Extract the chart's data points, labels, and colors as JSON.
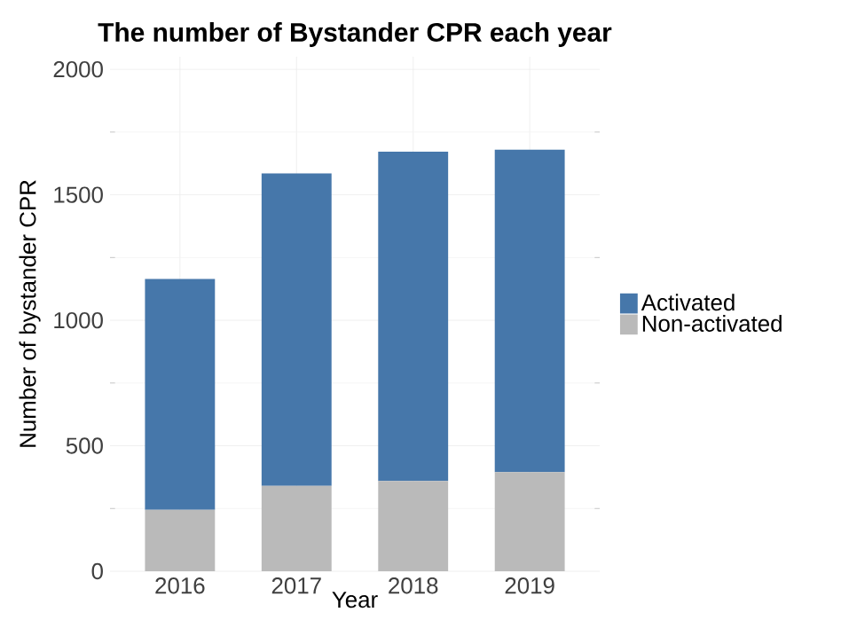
{
  "chart_data": {
    "type": "bar",
    "stacked": true,
    "title": "The number of Bystander CPR each year",
    "xlabel": "Year",
    "ylabel": "Number of bystander CPR",
    "categories": [
      "2016",
      "2017",
      "2018",
      "2019"
    ],
    "series": [
      {
        "name": "Non-activated",
        "color": "#bababa",
        "values": [
          245,
          340,
          360,
          395
        ]
      },
      {
        "name": "Activated",
        "color": "#4677aa",
        "values": [
          920,
          1245,
          1312,
          1285
        ]
      }
    ],
    "ylim": [
      0,
      2050
    ],
    "yticks": [
      0,
      500,
      1000,
      1500,
      2000
    ],
    "grid": true,
    "legend": "right"
  }
}
